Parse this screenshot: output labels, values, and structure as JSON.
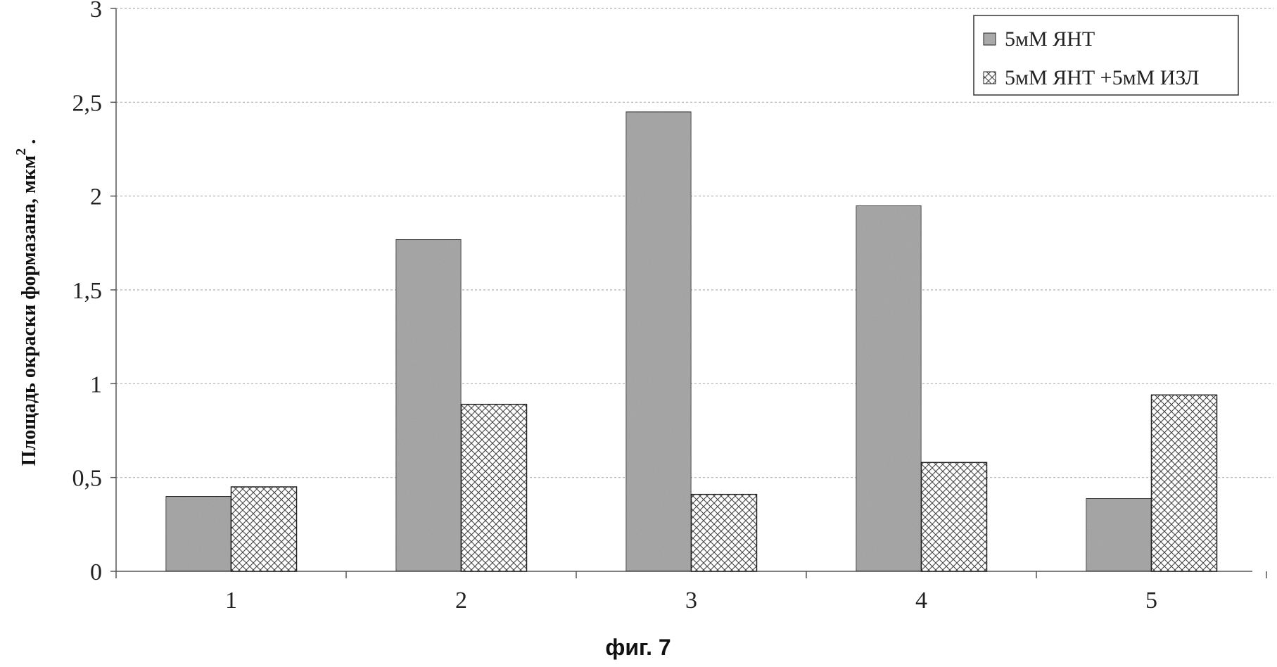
{
  "chart_data": {
    "type": "bar",
    "categories": [
      "1",
      "2",
      "3",
      "4",
      "5"
    ],
    "series": [
      {
        "name": "5мМ ЯНТ",
        "values": [
          0.4,
          1.77,
          2.45,
          1.95,
          0.39
        ],
        "fill": "#a9a9a9",
        "pattern": "solid"
      },
      {
        "name": "5мМ ЯНТ +5мМ ИЗЛ",
        "values": [
          0.45,
          0.89,
          0.41,
          0.58,
          0.94
        ],
        "fill": "#ffffff",
        "pattern": "crosshatch"
      }
    ],
    "ylabel": "Площадь окраски формазана, мкм",
    "ylabel_superscript": "2",
    "ylabel_suffix": ".",
    "ylim": [
      0,
      3
    ],
    "yticks": [
      "0",
      "0,5",
      "1",
      "1,5",
      "2",
      "2,5",
      "3"
    ],
    "grid": true,
    "grid_style": "dashed",
    "legend_position": "top-right",
    "caption": "фиг. 7"
  },
  "colors": {
    "bar_solid": "#a9a9a9",
    "axis": "#555555",
    "grid": "#b0b0b0",
    "bar_border": "#222222"
  }
}
